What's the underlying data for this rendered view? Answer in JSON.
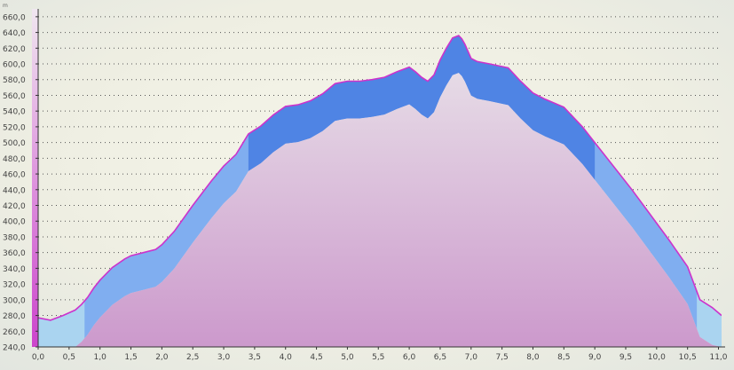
{
  "chart_data": {
    "type": "area",
    "y_unit": "m",
    "xlim": [
      0,
      11.05
    ],
    "ylim": [
      240,
      670
    ],
    "x_ticks": [
      "0,0",
      "0,5",
      "1,0",
      "1,5",
      "2,0",
      "2,5",
      "3,0",
      "3,5",
      "4,0",
      "4,5",
      "5,0",
      "5,5",
      "6,0",
      "6,5",
      "7,0",
      "7,5",
      "8,0",
      "8,5",
      "9,0",
      "9,5",
      "10,0",
      "10,5",
      "11,0"
    ],
    "y_ticks": [
      "240,0",
      "260,0",
      "280,0",
      "300,0",
      "320,0",
      "340,0",
      "360,0",
      "380,0",
      "400,0",
      "420,0",
      "440,0",
      "460,0",
      "480,0",
      "500,0",
      "520,0",
      "540,0",
      "560,0",
      "580,0",
      "600,0",
      "620,0",
      "640,0",
      "660,0"
    ],
    "grid": true,
    "colors": {
      "elevation_line": "#cc33cc",
      "band_light": "#aad4f0",
      "band_mid": "#80aef0",
      "band_dark": "#4f84e4",
      "fill_top": "#e6dbe6",
      "fill_bottom": "#cc99cc",
      "axis_bar": "#cc44cc",
      "background": "#eeeee2"
    },
    "series": [
      {
        "x": [
          0.0,
          0.2,
          0.4,
          0.6,
          0.7,
          0.8,
          0.9,
          1.0,
          1.2,
          1.4,
          1.5,
          1.7,
          1.9,
          2.0,
          2.2,
          2.5,
          2.8,
          3.0,
          3.2,
          3.4,
          3.6,
          3.8,
          4.0,
          4.2,
          4.4,
          4.6,
          4.8,
          5.0,
          5.2,
          5.4,
          5.6,
          5.8,
          6.0,
          6.1,
          6.2,
          6.3,
          6.4,
          6.5,
          6.6,
          6.7,
          6.8,
          6.85,
          6.9,
          7.0,
          7.1,
          7.3,
          7.6,
          7.8,
          8.0,
          8.2,
          8.5,
          8.8,
          9.0,
          9.3,
          9.6,
          9.9,
          10.2,
          10.5,
          10.7,
          10.9,
          11.05
        ],
        "y": [
          277,
          274,
          280,
          287,
          294,
          303,
          315,
          325,
          341,
          352,
          356,
          360,
          364,
          370,
          387,
          420,
          451,
          470,
          485,
          511,
          521,
          535,
          546,
          548,
          553,
          562,
          575,
          578,
          578,
          580,
          583,
          590,
          596,
          590,
          583,
          578,
          586,
          605,
          620,
          633,
          636,
          632,
          625,
          607,
          603,
          600,
          595,
          578,
          563,
          555,
          545,
          520,
          500,
          470,
          440,
          408,
          376,
          342,
          300,
          290,
          280
        ]
      }
    ]
  }
}
